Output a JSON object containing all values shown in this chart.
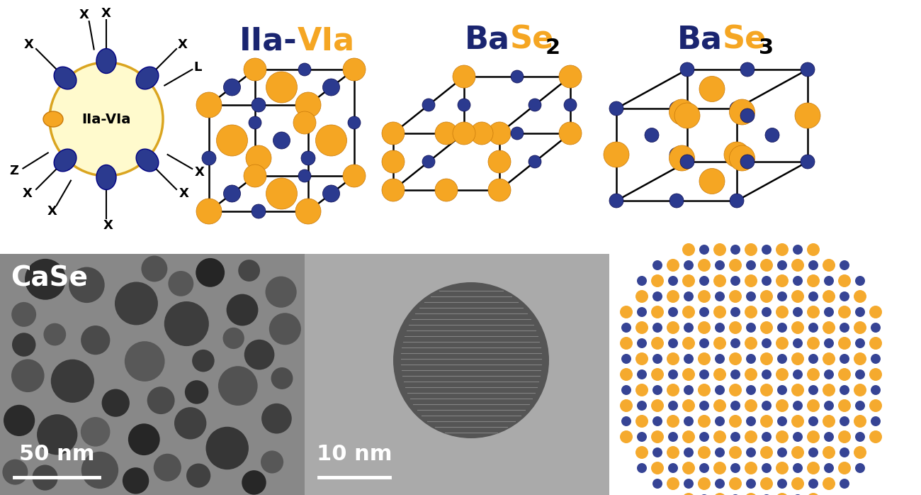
{
  "bg_color": "#ffffff",
  "orange_color": "#F5A623",
  "blue_color": "#2B3A8F",
  "dark_blue": "#1a2570",
  "label_IIa_VIa": "IIa-VIa",
  "label_BaSe2": "BaSe",
  "label_BaSe3": "BaSe",
  "label_CaSe": "CaSe",
  "label_50nm": "50 nm",
  "label_10nm": "10 nm",
  "nanocrystal_label": "IIa-VIa",
  "yellow_fill": "#FFFACD",
  "yellow_stroke": "#DAA520"
}
